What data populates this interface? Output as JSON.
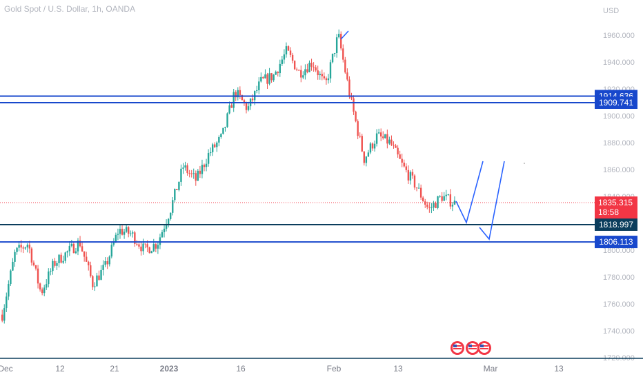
{
  "chart_title": "Gold Spot / U.S. Dollar, 1h, OANDA",
  "currency_label": "USD",
  "colors": {
    "up": "#26a69a",
    "down": "#ef5350",
    "level_line": "#1848cc",
    "level_dark": "#0b3d5c",
    "current_price": "#f23645",
    "axis_text": "#b2b5be",
    "path": "#2962ff"
  },
  "chart_data": {
    "type": "candlestick",
    "title": "Gold Spot / U.S. Dollar, 1h, OANDA",
    "y_axis": {
      "unit": "USD",
      "ylim": [
        1718,
        1968
      ],
      "ticks": [
        "1960.000",
        "1940.000",
        "1920.000",
        "1900.000",
        "1880.000",
        "1860.000",
        "1840.000",
        "1820.000",
        "1800.000",
        "1780.000",
        "1760.000",
        "1740.000",
        "1720.000"
      ]
    },
    "x_axis": {
      "ticks": [
        "Dec",
        "12",
        "21",
        "2023",
        "16",
        "Feb",
        "13",
        "Mar",
        "13"
      ]
    },
    "price_path": [
      [
        "Dec",
        1752
      ],
      [
        "Dec",
        1798
      ],
      [
        "Dec",
        1805
      ],
      [
        "Dec",
        1768
      ],
      [
        "Dec",
        1790
      ],
      [
        "12",
        1798
      ],
      [
        "12",
        1806
      ],
      [
        "12",
        1775
      ],
      [
        "12",
        1788
      ],
      [
        "21",
        1815
      ],
      [
        "21",
        1812
      ],
      [
        "21",
        1800
      ],
      [
        "21",
        1805
      ],
      [
        "2023",
        1830
      ],
      [
        "2023",
        1862
      ],
      [
        "2023",
        1852
      ],
      [
        "2023",
        1872
      ],
      [
        "2023",
        1884
      ],
      [
        "16",
        1918
      ],
      [
        "16",
        1905
      ],
      [
        "16",
        1925
      ],
      [
        "16",
        1930
      ],
      [
        "16",
        1948
      ],
      [
        "16",
        1932
      ],
      [
        "16",
        1940
      ],
      [
        "Feb",
        1922
      ],
      [
        "Feb",
        1960
      ],
      [
        "Feb",
        1910
      ],
      [
        "Feb",
        1868
      ],
      [
        "Feb",
        1885
      ],
      [
        "13",
        1880
      ],
      [
        "13",
        1862
      ],
      [
        "13",
        1848
      ],
      [
        "13",
        1830
      ],
      [
        "13",
        1840
      ],
      [
        "13",
        1835
      ]
    ],
    "levels": [
      {
        "value": 1914.636,
        "label": "1914.636",
        "style": "blue"
      },
      {
        "value": 1909.741,
        "label": "1909.741",
        "style": "blue"
      },
      {
        "value": 1818.997,
        "label": "1818.997",
        "style": "dark"
      },
      {
        "value": 1806.113,
        "label": "1806.113",
        "style": "blue"
      }
    ],
    "current_price": {
      "value": 1835.315,
      "label": "1835.315",
      "countdown": "18:58"
    },
    "drawings": "projected zig-zag path"
  }
}
